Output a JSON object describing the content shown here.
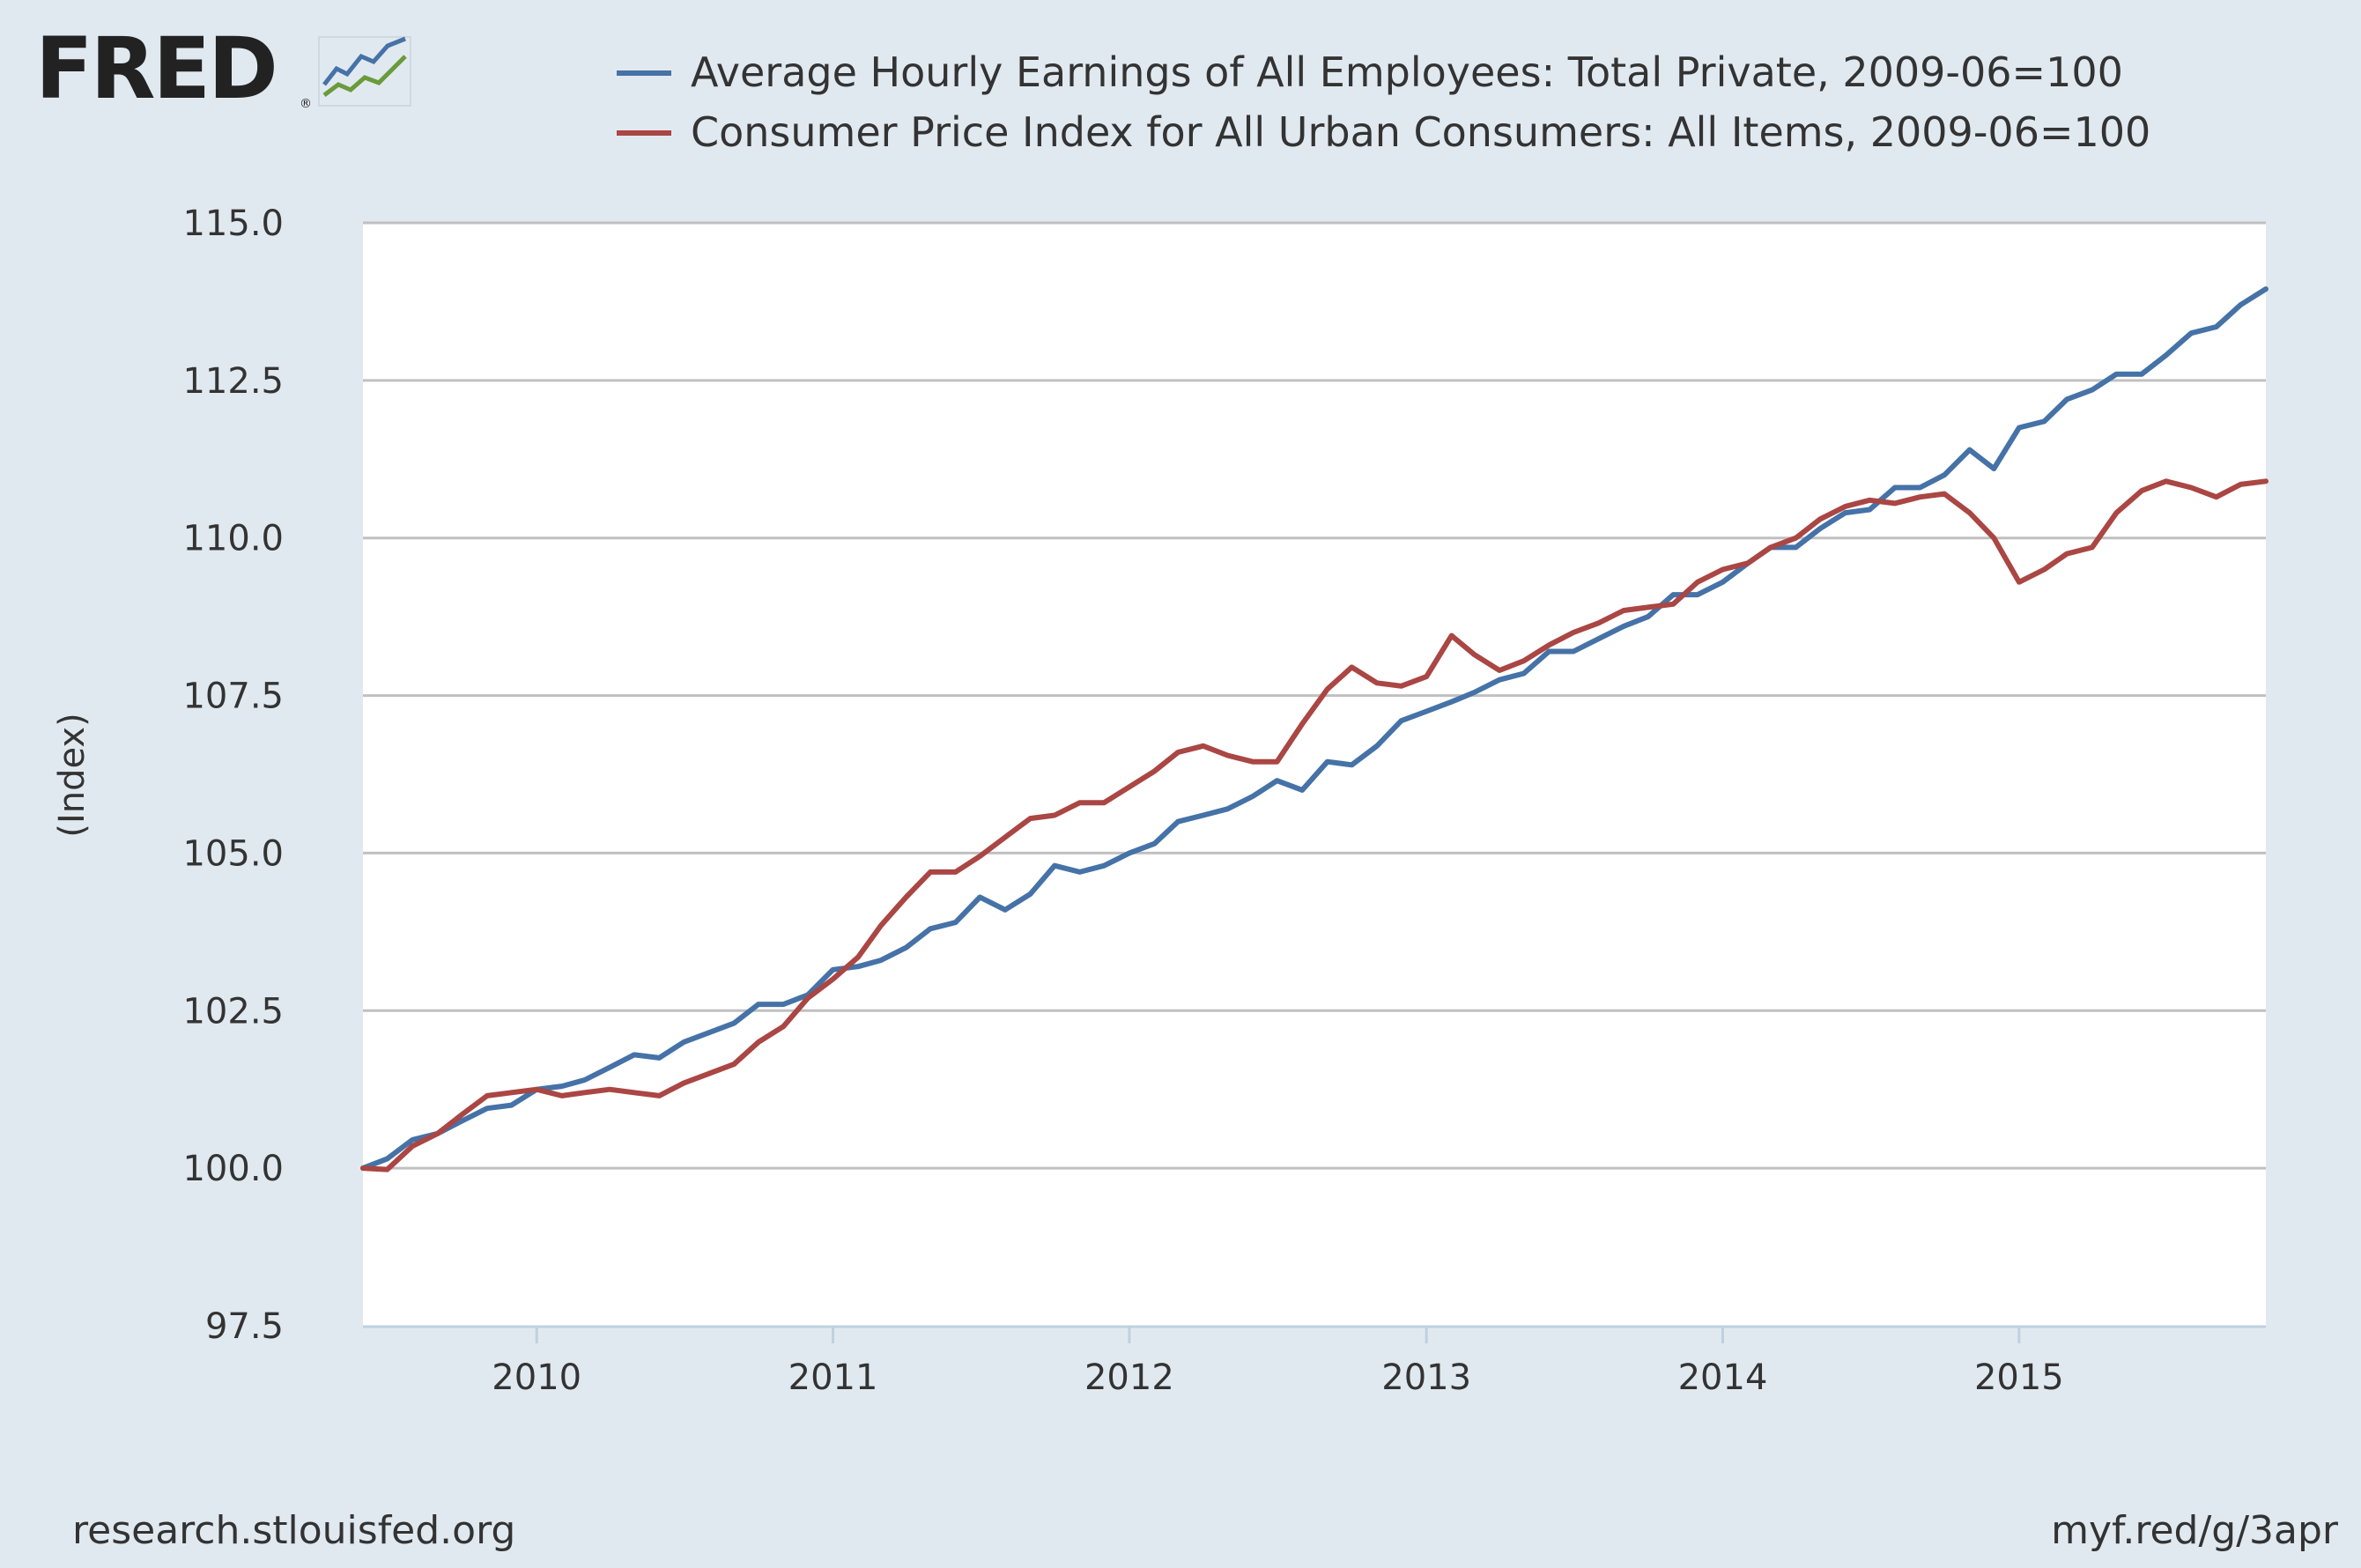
{
  "logo": {
    "text": "FRED",
    "reg": "®"
  },
  "colors": {
    "earnings": "#4572a7",
    "cpi": "#aa4643",
    "plot_bg": "#ffffff",
    "page_bg": "#e1e9f0",
    "grid": "#c0c0c0"
  },
  "footer": {
    "source": "research.stlouisfed.org",
    "short_url": "myf.red/g/3apr"
  },
  "chart_data": {
    "type": "line",
    "title": "",
    "xlabel": "",
    "ylabel": "(Index)",
    "ylim": [
      97.5,
      115.0
    ],
    "yticks": [
      "97.5",
      "100.0",
      "102.5",
      "105.0",
      "107.5",
      "110.0",
      "112.5",
      "115.0"
    ],
    "xlim": [
      "2009-06",
      "2015-11"
    ],
    "xticks": [
      "2010",
      "2011",
      "2012",
      "2013",
      "2014",
      "2015"
    ],
    "grid": "horizontal",
    "legend": "top",
    "x": [
      "2009-06",
      "2009-07",
      "2009-08",
      "2009-09",
      "2009-10",
      "2009-11",
      "2009-12",
      "2010-01",
      "2010-02",
      "2010-03",
      "2010-04",
      "2010-05",
      "2010-06",
      "2010-07",
      "2010-08",
      "2010-09",
      "2010-10",
      "2010-11",
      "2010-12",
      "2011-01",
      "2011-02",
      "2011-03",
      "2011-04",
      "2011-05",
      "2011-06",
      "2011-07",
      "2011-08",
      "2011-09",
      "2011-10",
      "2011-11",
      "2011-12",
      "2012-01",
      "2012-02",
      "2012-03",
      "2012-04",
      "2012-05",
      "2012-06",
      "2012-07",
      "2012-08",
      "2012-09",
      "2012-10",
      "2012-11",
      "2012-12",
      "2013-01",
      "2013-02",
      "2013-03",
      "2013-04",
      "2013-05",
      "2013-06",
      "2013-07",
      "2013-08",
      "2013-09",
      "2013-10",
      "2013-11",
      "2013-12",
      "2014-01",
      "2014-02",
      "2014-03",
      "2014-04",
      "2014-05",
      "2014-06",
      "2014-07",
      "2014-08",
      "2014-09",
      "2014-10",
      "2014-11",
      "2014-12",
      "2015-01",
      "2015-02",
      "2015-03",
      "2015-04",
      "2015-05",
      "2015-06",
      "2015-07",
      "2015-08",
      "2015-09",
      "2015-10",
      "2015-11"
    ],
    "series": [
      {
        "name": "Average Hourly Earnings of All Employees: Total Private, 2009-06=100",
        "color": "#4572a7",
        "values": [
          100.0,
          100.15,
          100.45,
          100.55,
          100.75,
          100.95,
          101.0,
          101.25,
          101.3,
          101.4,
          101.6,
          101.8,
          101.75,
          102.0,
          102.15,
          102.3,
          102.6,
          102.6,
          102.75,
          103.15,
          103.2,
          103.3,
          103.5,
          103.8,
          103.9,
          104.3,
          104.1,
          104.35,
          104.8,
          104.7,
          104.8,
          105.0,
          105.15,
          105.5,
          105.6,
          105.7,
          105.9,
          106.15,
          106.0,
          106.45,
          106.4,
          106.7,
          107.1,
          107.25,
          107.4,
          107.55,
          107.75,
          107.85,
          108.2,
          108.2,
          108.4,
          108.6,
          108.75,
          109.1,
          109.1,
          109.3,
          109.6,
          109.85,
          109.85,
          110.15,
          110.4,
          110.45,
          110.8,
          110.8,
          111.0,
          111.4,
          111.1,
          111.75,
          111.85,
          112.2,
          112.35,
          112.6,
          112.6,
          112.9,
          113.25,
          113.35,
          113.7,
          113.95
        ]
      },
      {
        "name": "Consumer Price Index for All Urban Consumers: All Items, 2009-06=100",
        "color": "#aa4643",
        "values": [
          100.0,
          99.98,
          100.35,
          100.55,
          100.85,
          101.15,
          101.2,
          101.25,
          101.15,
          101.2,
          101.25,
          101.2,
          101.15,
          101.35,
          101.5,
          101.65,
          102.0,
          102.25,
          102.7,
          103.0,
          103.35,
          103.85,
          104.3,
          104.7,
          104.7,
          104.95,
          105.25,
          105.55,
          105.6,
          105.8,
          105.8,
          106.05,
          106.3,
          106.6,
          106.7,
          106.55,
          106.45,
          106.45,
          107.05,
          107.6,
          107.95,
          107.7,
          107.65,
          107.8,
          108.45,
          108.15,
          107.9,
          108.05,
          108.3,
          108.5,
          108.65,
          108.85,
          108.9,
          108.95,
          109.3,
          109.5,
          109.6,
          109.85,
          110.0,
          110.3,
          110.5,
          110.6,
          110.55,
          110.65,
          110.7,
          110.4,
          110.0,
          109.3,
          109.5,
          109.75,
          109.85,
          110.4,
          110.75,
          110.9,
          110.8,
          110.65,
          110.85,
          110.9
        ]
      }
    ]
  }
}
